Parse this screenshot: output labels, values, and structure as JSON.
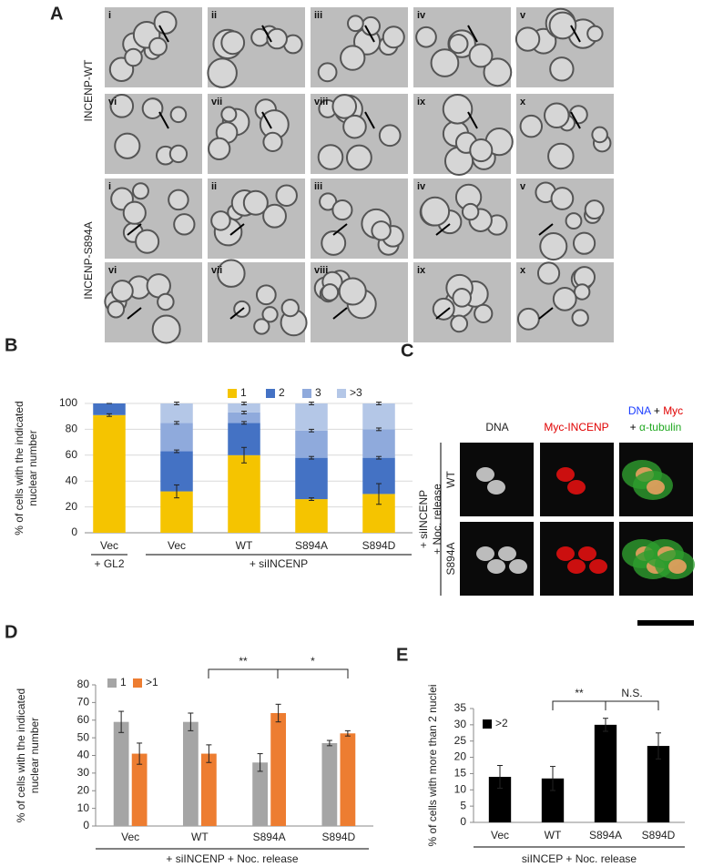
{
  "panel_a": {
    "letter": "A",
    "rows": [
      {
        "label": "INCENP-WT",
        "frames": [
          "i",
          "ii",
          "iii",
          "iv",
          "v",
          "vi",
          "vii",
          "viii",
          "ix",
          "x"
        ]
      },
      {
        "label": "INCENP-S894A",
        "frames": [
          "i",
          "ii",
          "iii",
          "iv",
          "v",
          "vi",
          "vii",
          "viii",
          "ix",
          "x"
        ]
      }
    ]
  },
  "panel_c": {
    "letter": "C",
    "columns": [
      "DNA",
      "Myc-INCENP"
    ],
    "merge_header": [
      [
        {
          "text": "DNA",
          "color": "#1a3cff"
        },
        {
          "text": " + ",
          "color": "#000000"
        },
        {
          "text": "Myc",
          "color": "#e00000"
        }
      ],
      [
        {
          "text": "+ ",
          "color": "#000000"
        },
        {
          "text": "α-tubulin",
          "color": "#1fa81f"
        }
      ]
    ],
    "rows": [
      "WT",
      "S894A"
    ],
    "side_label": [
      "+ siINCENP",
      "+ Noc. release"
    ]
  },
  "chart_data": [
    {
      "type": "bar",
      "panel": "B",
      "stacked": true,
      "y_label": [
        "% of cells with the indicated",
        "nuclear number"
      ],
      "categories": [
        "Vec",
        "Vec",
        "WT",
        "S894A",
        "S894D"
      ],
      "groups": [
        "+ GL2",
        "+ siINCENP"
      ],
      "series": [
        {
          "name": "1",
          "color": "#f5c400",
          "values": [
            91,
            32,
            60,
            26,
            30
          ],
          "errors": [
            1,
            5,
            6,
            1,
            8
          ]
        },
        {
          "name": "2",
          "color": "#4472c4",
          "values": [
            9,
            31,
            25,
            32,
            28
          ],
          "errors": [
            0,
            1,
            1,
            1,
            1
          ]
        },
        {
          "name": "3",
          "color": "#8faadc",
          "values": [
            0,
            22,
            8,
            21,
            22
          ],
          "errors": [
            0,
            1,
            1,
            1,
            1
          ]
        },
        {
          "name": ">3",
          "color": "#b4c7e7",
          "values": [
            0,
            15,
            7,
            21,
            20
          ],
          "errors": [
            0,
            1,
            1,
            1,
            1
          ]
        }
      ],
      "ylim": [
        0,
        100
      ],
      "yticks": [
        0,
        20,
        40,
        60,
        80,
        100
      ],
      "grid": true
    },
    {
      "type": "bar",
      "panel": "D",
      "stacked": false,
      "y_label": [
        "% of cells with the indicated",
        "nuclear number"
      ],
      "categories": [
        "Vec",
        "WT",
        "S894A",
        "S894D"
      ],
      "x_label": "+ siINCENP + Noc. release",
      "series": [
        {
          "name": "1",
          "color": "#a5a5a5",
          "values": [
            59,
            59,
            36,
            47
          ],
          "errors": [
            6,
            5,
            5,
            1.5
          ]
        },
        {
          "name": ">1",
          "color": "#ed7d31",
          "values": [
            41,
            41,
            64,
            52.5
          ],
          "errors": [
            6,
            5,
            5,
            1.5
          ]
        }
      ],
      "annotations": [
        "**",
        "*"
      ],
      "ylim": [
        0,
        80
      ],
      "yticks": [
        0,
        10,
        20,
        30,
        40,
        50,
        60,
        70,
        80
      ],
      "grid": false
    },
    {
      "type": "bar",
      "panel": "E",
      "stacked": false,
      "y_label": [
        "% of cells with more than 2 nuclei"
      ],
      "categories": [
        "Vec",
        "WT",
        "S894A",
        "S894D"
      ],
      "x_label": "siINCEP + Noc. release",
      "series": [
        {
          "name": ">2",
          "color": "#000000",
          "values": [
            14,
            13.5,
            30,
            23.5
          ],
          "errors": [
            3.5,
            3.7,
            2,
            4
          ]
        }
      ],
      "annotations": [
        "**",
        "N.S."
      ],
      "ylim": [
        0,
        35
      ],
      "yticks": [
        0,
        5,
        10,
        15,
        20,
        25,
        30,
        35
      ],
      "grid": false
    }
  ]
}
